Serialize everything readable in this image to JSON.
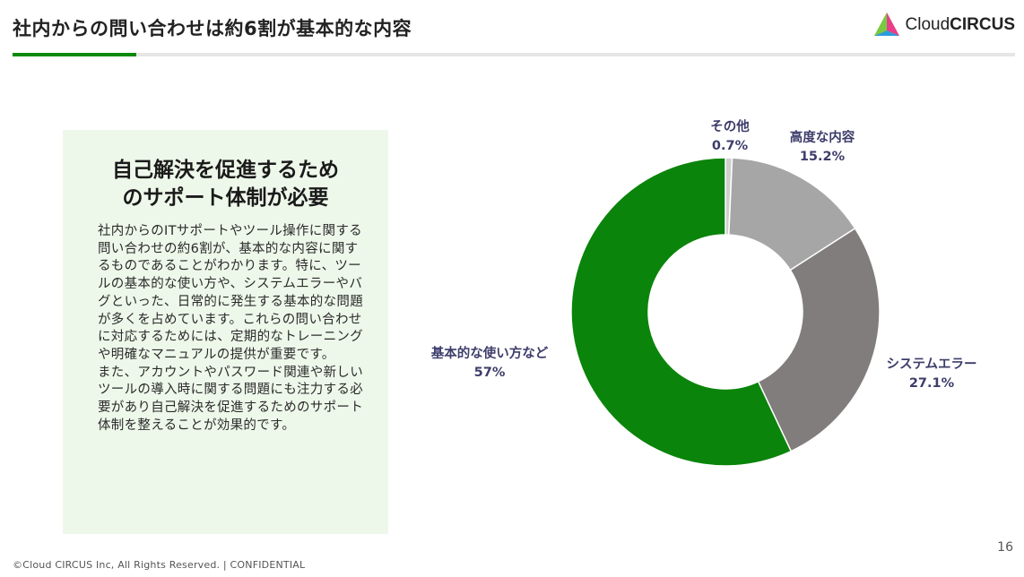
{
  "header": {
    "title": "社内からの問い合わせは約6割が基本的な内容",
    "logo_text_light": "Cloud",
    "logo_text_bold": "CIRCUS"
  },
  "panel": {
    "heading_line1": "自己解決を促進するため",
    "heading_line2": "のサポート体制が必要",
    "body": "社内からのITサポートやツール操作に関する問い合わせの約6割が、基本的な内容に関するものであることがわかります。特に、ツールの基本的な使い方や、システムエラーやバグといった、日常的に発生する基本的な問題が多くを占めています。これらの問い合わせに対応するためには、定期的なトレーニングや明確なマニュアルの提供が重要です。",
    "body2": "また、アカウントやパスワード関連や新しいツールの導入時に関する問題にも注力する必要があり自己解決を促進するためのサポート体制を整えることが効果的です。"
  },
  "chart_data": {
    "type": "pie",
    "donut": true,
    "slices": [
      {
        "label": "その他",
        "value": 0.7,
        "display": "0.7%",
        "color": "#cfcfcf"
      },
      {
        "label": "高度な内容",
        "value": 15.2,
        "display": "15.2%",
        "color": "#a6a6a6"
      },
      {
        "label": "システムエラー",
        "value": 27.1,
        "display": "27.1%",
        "color": "#827d7d"
      },
      {
        "label": "基本的な使い方など",
        "value": 57,
        "display": "57%",
        "color": "#0a840a"
      }
    ]
  },
  "footer": {
    "copyright": "©Cloud CIRCUS Inc, All Rights Reserved. | CONFIDENTIAL",
    "page_number": "16"
  }
}
